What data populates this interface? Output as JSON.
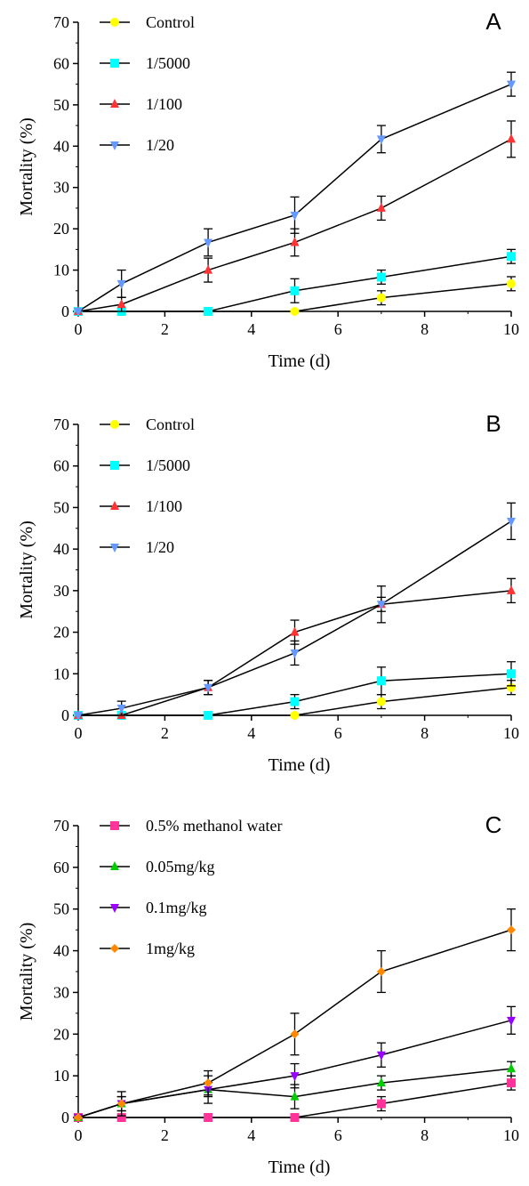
{
  "chart_data": [
    {
      "panel_label": "A",
      "type": "line",
      "xlabel": "Time (d)",
      "ylabel": "Mortality (%)",
      "xlim": [
        0,
        10
      ],
      "ylim": [
        0,
        70
      ],
      "xticks": [
        "0",
        "2",
        "4",
        "6",
        "8",
        "10"
      ],
      "yticks": [
        "0",
        "10",
        "20",
        "30",
        "40",
        "50",
        "60",
        "70"
      ],
      "grid": false,
      "legend_position": "top-left",
      "x": [
        0,
        1,
        3,
        5,
        7,
        10
      ],
      "series": [
        {
          "name": "Control",
          "marker": "circle",
          "color": "#ffff00",
          "values": [
            0,
            0,
            0,
            0,
            3.3,
            6.7
          ],
          "errors": [
            0,
            0,
            0,
            0,
            1.7,
            1.7
          ]
        },
        {
          "name": "1/5000",
          "marker": "square",
          "color": "#00ffff",
          "values": [
            0,
            0,
            0,
            5.0,
            8.3,
            13.3
          ],
          "errors": [
            0,
            0,
            0,
            2.9,
            1.7,
            1.7
          ]
        },
        {
          "name": "1/100",
          "marker": "triangle-up",
          "color": "#ff3333",
          "values": [
            0,
            1.7,
            10.0,
            16.7,
            25.0,
            41.7
          ],
          "errors": [
            0,
            1.7,
            2.9,
            3.3,
            2.9,
            4.4
          ]
        },
        {
          "name": "1/20",
          "marker": "triangle-down",
          "color": "#6699ff",
          "values": [
            0,
            6.7,
            16.7,
            23.3,
            41.7,
            55.0
          ],
          "errors": [
            0,
            3.3,
            3.3,
            4.4,
            3.3,
            2.9
          ]
        }
      ]
    },
    {
      "panel_label": "B",
      "type": "line",
      "xlabel": "Time (d)",
      "ylabel": "Mortality (%)",
      "xlim": [
        0,
        10
      ],
      "ylim": [
        0,
        70
      ],
      "xticks": [
        "0",
        "2",
        "4",
        "6",
        "8",
        "10"
      ],
      "yticks": [
        "0",
        "10",
        "20",
        "30",
        "40",
        "50",
        "60",
        "70"
      ],
      "grid": false,
      "legend_position": "top-left",
      "x": [
        0,
        1,
        3,
        5,
        7,
        10
      ],
      "series": [
        {
          "name": "Control",
          "marker": "circle",
          "color": "#ffff00",
          "values": [
            0,
            0,
            0,
            0,
            3.3,
            6.7
          ],
          "errors": [
            0,
            0,
            0,
            0,
            1.7,
            1.7
          ]
        },
        {
          "name": "1/5000",
          "marker": "square",
          "color": "#00ffff",
          "values": [
            0,
            0,
            0,
            3.3,
            8.3,
            10.0
          ],
          "errors": [
            0,
            0,
            0,
            1.7,
            3.3,
            2.9
          ]
        },
        {
          "name": "1/100",
          "marker": "triangle-up",
          "color": "#ff3333",
          "values": [
            0,
            0,
            6.7,
            20.0,
            26.7,
            30.0
          ],
          "errors": [
            0,
            0,
            1.7,
            2.9,
            4.4,
            2.9
          ]
        },
        {
          "name": "1/20",
          "marker": "triangle-down",
          "color": "#6699ff",
          "values": [
            0,
            1.7,
            6.7,
            15.0,
            26.7,
            46.7
          ],
          "errors": [
            0,
            1.7,
            1.7,
            2.9,
            1.7,
            4.4
          ]
        }
      ]
    },
    {
      "panel_label": "C",
      "type": "line",
      "xlabel": "Time (d)",
      "ylabel": "Mortality (%)",
      "xlim": [
        0,
        10
      ],
      "ylim": [
        0,
        70
      ],
      "xticks": [
        "0",
        "2",
        "4",
        "6",
        "8",
        "10"
      ],
      "yticks": [
        "0",
        "10",
        "20",
        "30",
        "40",
        "50",
        "60",
        "70"
      ],
      "grid": false,
      "legend_position": "top-left",
      "x": [
        0,
        1,
        3,
        5,
        7,
        10
      ],
      "series": [
        {
          "name": "0.5% methanol water",
          "marker": "square",
          "color": "#ff3399",
          "values": [
            0,
            0,
            0,
            0,
            3.3,
            8.3
          ],
          "errors": [
            0,
            0,
            0,
            0,
            1.7,
            1.7
          ]
        },
        {
          "name": "0.05mg/kg",
          "marker": "triangle-up",
          "color": "#00cc00",
          "values": [
            0,
            3.3,
            6.7,
            5.0,
            8.3,
            11.7
          ],
          "errors": [
            0,
            1.7,
            1.7,
            2.9,
            1.7,
            1.7
          ]
        },
        {
          "name": "0.1mg/kg",
          "marker": "triangle-down",
          "color": "#9900ff",
          "values": [
            0,
            3.3,
            6.7,
            10.0,
            15.0,
            23.3
          ],
          "errors": [
            0,
            1.7,
            3.3,
            2.9,
            2.9,
            3.3
          ]
        },
        {
          "name": "1mg/kg",
          "marker": "diamond",
          "color": "#ff8800",
          "values": [
            0,
            3.3,
            8.3,
            20.0,
            35.0,
            45.0
          ],
          "errors": [
            0,
            2.9,
            2.9,
            5.0,
            5.0,
            5.0
          ]
        }
      ]
    }
  ]
}
